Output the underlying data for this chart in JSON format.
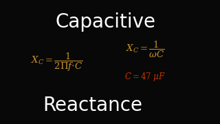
{
  "background_color": "#080808",
  "title_color": "#ffffff",
  "formula_color": "#c8922a",
  "red_color": "#cc3300",
  "fig_width": 3.2,
  "fig_height": 1.8,
  "dpi": 100,
  "title_fontsize": 20,
  "formula_fontsize": 9.5,
  "red_fontsize": 8.5
}
